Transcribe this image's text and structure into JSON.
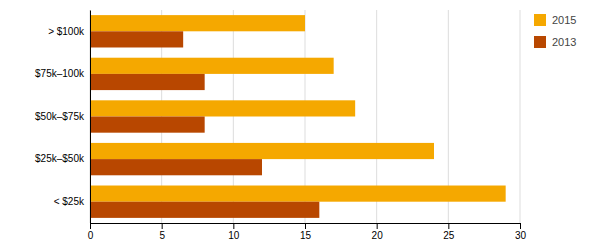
{
  "chart_data": {
    "type": "bar",
    "orientation": "horizontal",
    "categories": [
      "< $25k",
      "$25k–$50k",
      "$50k–$75k",
      "$75k–100k",
      "> $100k"
    ],
    "series": [
      {
        "name": "2015",
        "color": "#F5A800",
        "values": [
          29,
          24,
          18.5,
          17,
          15
        ]
      },
      {
        "name": "2013",
        "color": "#B84700",
        "values": [
          16,
          12,
          8,
          8,
          6.5
        ]
      }
    ],
    "xlim": [
      0,
      30
    ],
    "xticks": [
      0,
      5,
      10,
      15,
      20,
      25,
      30
    ],
    "grid": true,
    "legend": "right"
  }
}
